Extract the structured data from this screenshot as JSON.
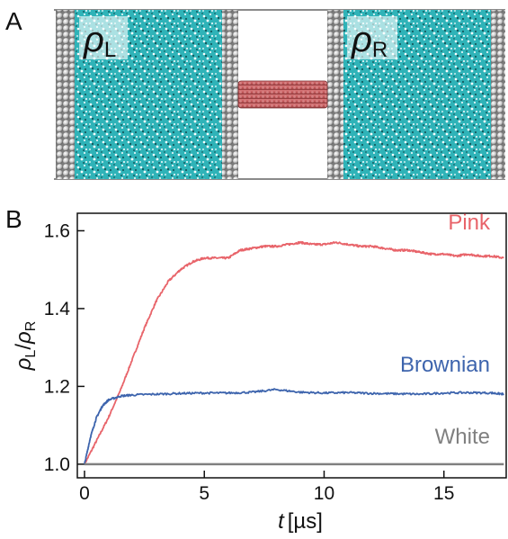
{
  "panel_a": {
    "letter": "A",
    "left_label": {
      "symbol": "ρ",
      "sub": "L"
    },
    "right_label": {
      "symbol": "ρ",
      "sub": "R"
    }
  },
  "panel_b": {
    "letter": "B"
  },
  "colors": {
    "fluid": "#2fb3b8",
    "wall_atom": "#d8d8d8",
    "channel": "#c2585a",
    "axes": "#111111"
  },
  "chart_data": {
    "type": "line",
    "xlabel": {
      "symbol": "t",
      "unit": "[µs]"
    },
    "ylabel": {
      "num": "ρ",
      "num_sub": "L",
      "den": "ρ",
      "den_sub": "R"
    },
    "xlim": [
      -0.3,
      17.6
    ],
    "ylim": [
      0.965,
      1.645
    ],
    "xticks": [
      0,
      5,
      10,
      15
    ],
    "xtick_labels": [
      "0",
      "5",
      "10",
      "15"
    ],
    "yticks": [
      1.0,
      1.2,
      1.4,
      1.6
    ],
    "ytick_labels": [
      "1.0",
      "1.2",
      "1.4",
      "1.6"
    ],
    "grid": false,
    "series": [
      {
        "name": "Pink",
        "color": "#e8646a",
        "x": [
          0,
          0.5,
          1,
          1.5,
          2,
          2.5,
          3,
          3.5,
          4,
          4.5,
          5,
          5.5,
          6,
          6.5,
          7,
          7.5,
          8,
          8.5,
          9,
          9.5,
          10,
          10.5,
          11,
          11.5,
          12,
          12.5,
          13,
          13.5,
          14,
          14.5,
          15,
          15.5,
          16,
          16.5,
          17,
          17.5
        ],
        "y": [
          1.0,
          1.06,
          1.12,
          1.19,
          1.27,
          1.35,
          1.42,
          1.47,
          1.5,
          1.52,
          1.53,
          1.53,
          1.53,
          1.55,
          1.555,
          1.56,
          1.56,
          1.565,
          1.57,
          1.565,
          1.565,
          1.57,
          1.565,
          1.56,
          1.56,
          1.555,
          1.55,
          1.55,
          1.545,
          1.54,
          1.54,
          1.535,
          1.54,
          1.535,
          1.535,
          1.53
        ]
      },
      {
        "name": "Brownian",
        "color": "#3d64ad",
        "x": [
          0,
          0.25,
          0.5,
          0.75,
          1,
          1.5,
          2,
          3,
          4,
          5,
          6,
          7,
          8,
          9,
          10,
          11,
          12,
          13,
          14,
          15,
          16,
          17,
          17.5
        ],
        "y": [
          1.0,
          1.07,
          1.12,
          1.15,
          1.165,
          1.175,
          1.178,
          1.18,
          1.182,
          1.183,
          1.183,
          1.185,
          1.192,
          1.185,
          1.183,
          1.184,
          1.182,
          1.181,
          1.18,
          1.183,
          1.184,
          1.183,
          1.18
        ]
      },
      {
        "name": "White",
        "color": "#808080",
        "x": [
          0,
          17.5
        ],
        "y": [
          1.0,
          1.0
        ]
      }
    ]
  }
}
